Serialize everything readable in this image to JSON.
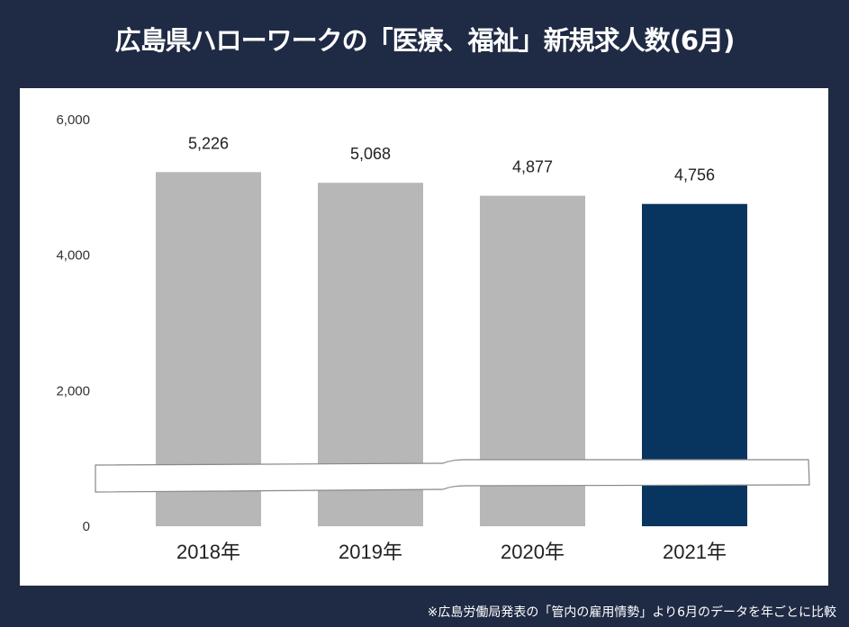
{
  "title": "広島県ハローワークの「医療、福祉」新規求人数(6月)",
  "footnote": "※広島労働局発表の「管内の雇用情勢」より6月のデータを年ごとに比較",
  "chart_data": {
    "type": "bar",
    "title": "広島県ハローワークの「医療、福祉」新規求人数(6月)",
    "categories": [
      "2018年",
      "2019年",
      "2020年",
      "2021年"
    ],
    "values": [
      5226,
      5068,
      4877,
      4756
    ],
    "value_labels": [
      "5,226",
      "5,068",
      "4,877",
      "4,756"
    ],
    "ylim": [
      0,
      6000
    ],
    "yticks": [
      0,
      2000,
      4000,
      6000
    ],
    "ytick_labels": [
      "0",
      "2,000",
      "4,000",
      "6,000"
    ],
    "grid": false,
    "axis_break": true,
    "colors": {
      "default": "#b7b7b7",
      "highlight": "#08355f",
      "background": "#1f2a44"
    },
    "highlight_index": 3
  }
}
